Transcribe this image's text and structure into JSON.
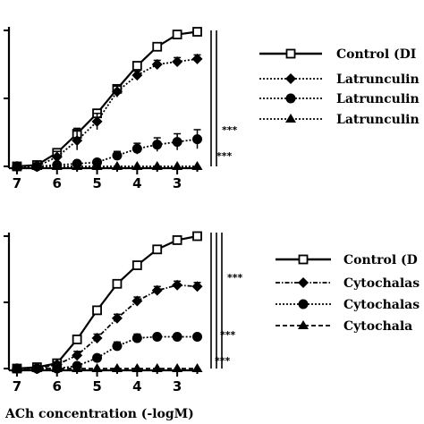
{
  "colors": {
    "ink": "#000000",
    "background": "#ffffff"
  },
  "chart_data": [
    {
      "type": "line",
      "title": "",
      "xlabel": "",
      "ylabel": "",
      "x_axis_reversed": true,
      "xlim": [
        7.2,
        2.4
      ],
      "ylim": [
        0,
        100
      ],
      "x_tick_labels": [
        "7",
        "6",
        "5",
        "4",
        "3"
      ],
      "x": [
        7.0,
        6.5,
        6.0,
        5.5,
        5.0,
        4.5,
        4.0,
        3.5,
        3.0,
        2.5
      ],
      "series": [
        {
          "name": "Control (DI",
          "marker": "square-open",
          "line": "solid",
          "values": [
            0,
            1,
            10,
            24,
            39,
            57,
            74,
            88,
            97,
            99
          ],
          "errors": [
            0,
            0,
            3,
            4,
            3,
            3,
            2,
            2,
            1,
            0
          ]
        },
        {
          "name": "Latrunculin",
          "marker": "diamond",
          "line": "dotted",
          "values": [
            0,
            0,
            7,
            19,
            33,
            55,
            67,
            75,
            77,
            79
          ],
          "errors": [
            0,
            0,
            4,
            7,
            6,
            4,
            3,
            3,
            3,
            3
          ]
        },
        {
          "name": "Latrunculin",
          "marker": "circle",
          "line": "dotted",
          "values": [
            0,
            0,
            1,
            2,
            3,
            8,
            13,
            16,
            18,
            20
          ],
          "errors": [
            0,
            0,
            1,
            1,
            2,
            3,
            4,
            5,
            6,
            7
          ]
        },
        {
          "name": "Latrunculin",
          "marker": "triangle",
          "line": "dotted",
          "values": [
            0,
            0,
            0,
            0,
            0,
            0,
            0,
            0,
            0,
            0
          ],
          "errors": [
            0,
            0,
            0,
            0,
            0,
            0,
            0,
            0,
            0,
            0
          ]
        }
      ],
      "significance": [
        "***",
        "***"
      ],
      "legend_placement": "right"
    },
    {
      "type": "line",
      "title": "",
      "xlabel": "ACh concentration (-logM)",
      "ylabel": "",
      "x_axis_reversed": true,
      "xlim": [
        7.2,
        2.4
      ],
      "ylim": [
        0,
        100
      ],
      "x_tick_labels": [
        "7",
        "6",
        "5",
        "4",
        "3"
      ],
      "x": [
        7.0,
        6.5,
        6.0,
        5.5,
        5.0,
        4.5,
        4.0,
        3.5,
        3.0,
        2.5
      ],
      "series": [
        {
          "name": "Control (D",
          "marker": "square-open",
          "line": "solid",
          "values": [
            0,
            1,
            4,
            22,
            44,
            64,
            78,
            90,
            97,
            100
          ],
          "errors": [
            0,
            0,
            2,
            3,
            3,
            3,
            2,
            2,
            1,
            0
          ]
        },
        {
          "name": "Cytochalas",
          "marker": "diamond",
          "line": "dotdash",
          "values": [
            0,
            0,
            3,
            10,
            23,
            38,
            51,
            59,
            63,
            62
          ],
          "errors": [
            0,
            0,
            2,
            3,
            3,
            3,
            3,
            3,
            3,
            3
          ]
        },
        {
          "name": "Cytochalas",
          "marker": "circle",
          "line": "dotted",
          "values": [
            0,
            0,
            0,
            2,
            8,
            17,
            23,
            24,
            24,
            24
          ],
          "errors": [
            0,
            0,
            1,
            1,
            2,
            3,
            3,
            2,
            2,
            2
          ]
        },
        {
          "name": "Cytochala",
          "marker": "triangle",
          "line": "dashed",
          "values": [
            0,
            0,
            0,
            0,
            0,
            0,
            0,
            0,
            0,
            0
          ],
          "errors": [
            0,
            0,
            0,
            0,
            0,
            0,
            0,
            0,
            0,
            0
          ]
        }
      ],
      "significance": [
        "***",
        "***",
        "***"
      ],
      "legend_placement": "right"
    }
  ]
}
